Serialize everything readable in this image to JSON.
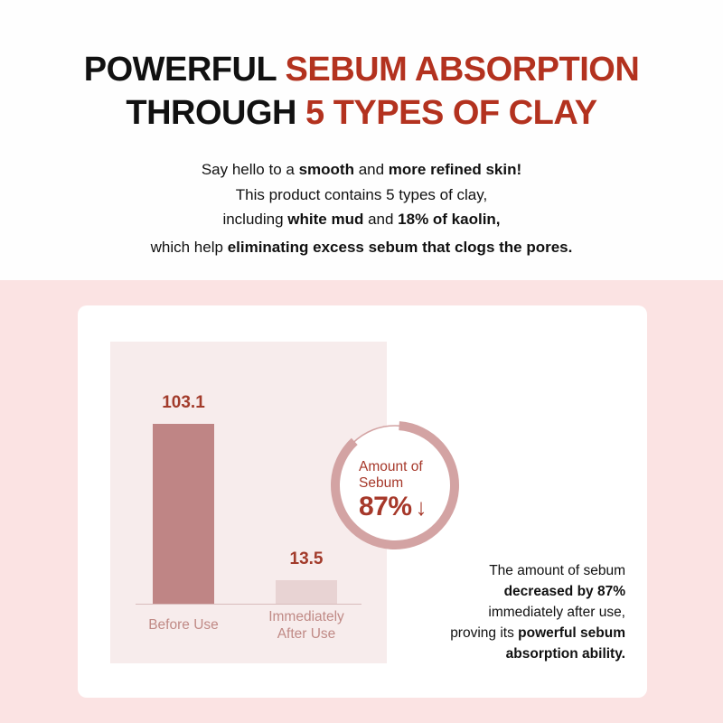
{
  "header": {
    "title_line1": [
      "POWERFUL ",
      "SEBUM ABSORPTION"
    ],
    "title_line2": [
      "THROUGH ",
      "5 TYPES OF CLAY"
    ],
    "paragraph": [
      [
        "Say hello to a ",
        "smooth",
        " and ",
        "more refined skin!"
      ],
      [
        "This product contains 5 types of clay,"
      ],
      [
        "including ",
        "white mud",
        " and ",
        "18% of kaolin,"
      ],
      [
        "which help ",
        "eliminating excess sebum that clogs the pores."
      ]
    ]
  },
  "colors": {
    "accent": "#b3321f",
    "bar_before": "#bf8585",
    "bar_after": "#e8d3d3",
    "ring": "#d3a3a3",
    "background_pink": "#fbe3e3"
  },
  "chart_data": {
    "type": "bar",
    "categories": [
      "Before Use",
      "Immediately After Use"
    ],
    "category_lines": [
      [
        "Before Use"
      ],
      [
        "Immediately",
        "After Use"
      ]
    ],
    "values": [
      103.1,
      13.5
    ],
    "value_labels": [
      "103.1",
      "13.5"
    ],
    "ylim": [
      0,
      103.1
    ]
  },
  "ring": {
    "label_line1": "Amount of",
    "label_line2": "Sebum",
    "value": "87%",
    "percent": 87,
    "arrow_icon": "down-arrow-icon"
  },
  "description": [
    [
      "The amount of sebum"
    ],
    [
      "",
      "decreased by 87%"
    ],
    [
      "immediately after use,"
    ],
    [
      "proving its ",
      "powerful sebum"
    ],
    [
      "",
      "absorption ability."
    ]
  ]
}
